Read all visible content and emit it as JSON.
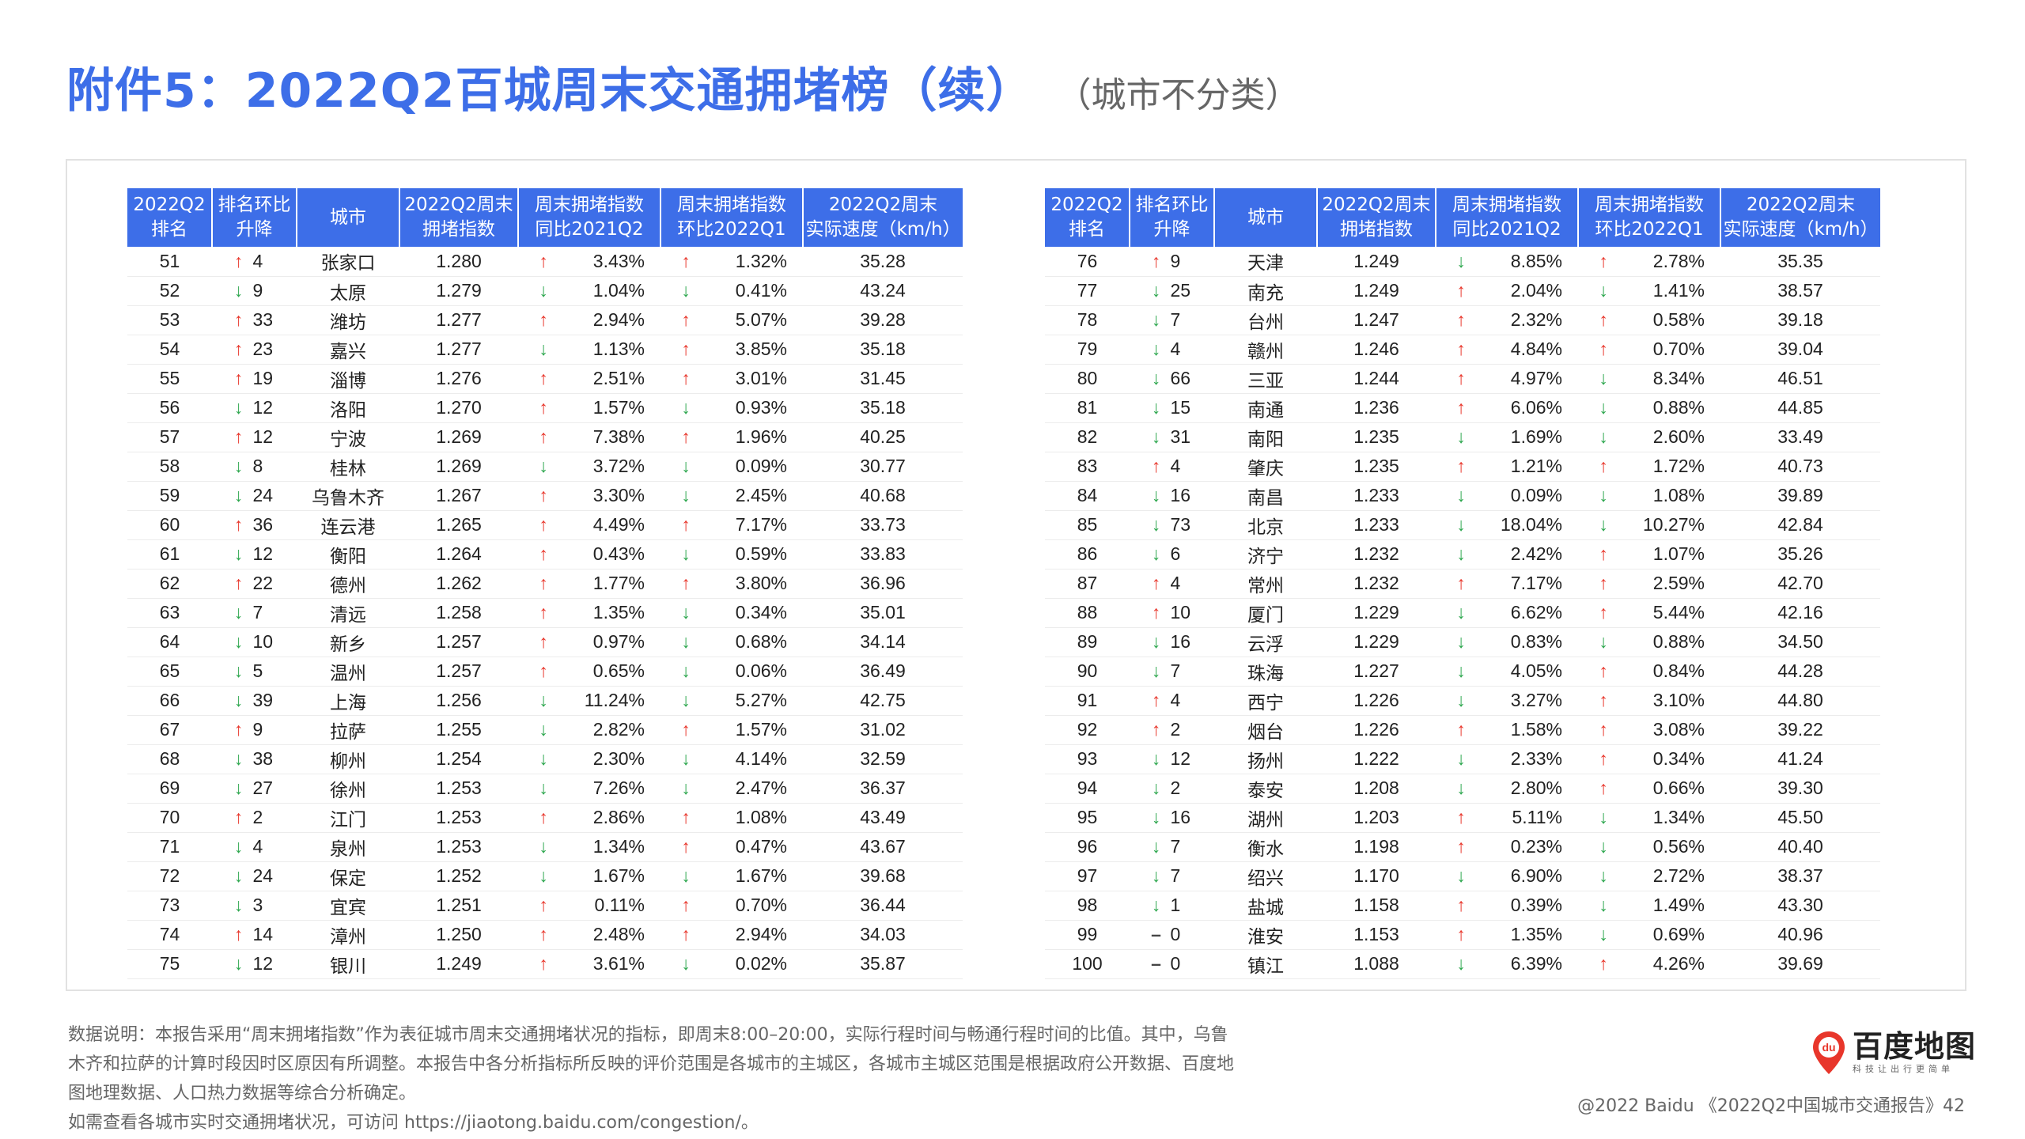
{
  "title": {
    "main": "附件5：2022Q2百城周末交通拥堵榜（续）",
    "sub": "（城市不分类）"
  },
  "table": {
    "headers": [
      [
        "2022Q2",
        "排名"
      ],
      [
        "排名环比",
        "升降"
      ],
      [
        "城市"
      ],
      [
        "2022Q2周末",
        "拥堵指数"
      ],
      [
        "周末拥堵指数",
        "同比2021Q2"
      ],
      [
        "周末拥堵指数",
        "环比2022Q1"
      ],
      [
        "2022Q2周末",
        "实际速度（km/h）"
      ]
    ],
    "left_rows": [
      {
        "rank": "51",
        "change_dir": "up",
        "change": "4",
        "city": "张家口",
        "index": "1.280",
        "yoy_dir": "up",
        "yoy": "3.43%",
        "qoq_dir": "up",
        "qoq": "1.32%",
        "speed": "35.28"
      },
      {
        "rank": "52",
        "change_dir": "down",
        "change": "9",
        "city": "太原",
        "index": "1.279",
        "yoy_dir": "down",
        "yoy": "1.04%",
        "qoq_dir": "down",
        "qoq": "0.41%",
        "speed": "43.24"
      },
      {
        "rank": "53",
        "change_dir": "up",
        "change": "33",
        "city": "潍坊",
        "index": "1.277",
        "yoy_dir": "up",
        "yoy": "2.94%",
        "qoq_dir": "up",
        "qoq": "5.07%",
        "speed": "39.28"
      },
      {
        "rank": "54",
        "change_dir": "up",
        "change": "23",
        "city": "嘉兴",
        "index": "1.277",
        "yoy_dir": "down",
        "yoy": "1.13%",
        "qoq_dir": "up",
        "qoq": "3.85%",
        "speed": "35.18"
      },
      {
        "rank": "55",
        "change_dir": "up",
        "change": "19",
        "city": "淄博",
        "index": "1.276",
        "yoy_dir": "up",
        "yoy": "2.51%",
        "qoq_dir": "up",
        "qoq": "3.01%",
        "speed": "31.45"
      },
      {
        "rank": "56",
        "change_dir": "down",
        "change": "12",
        "city": "洛阳",
        "index": "1.270",
        "yoy_dir": "up",
        "yoy": "1.57%",
        "qoq_dir": "down",
        "qoq": "0.93%",
        "speed": "35.18"
      },
      {
        "rank": "57",
        "change_dir": "up",
        "change": "12",
        "city": "宁波",
        "index": "1.269",
        "yoy_dir": "up",
        "yoy": "7.38%",
        "qoq_dir": "up",
        "qoq": "1.96%",
        "speed": "40.25"
      },
      {
        "rank": "58",
        "change_dir": "down",
        "change": "8",
        "city": "桂林",
        "index": "1.269",
        "yoy_dir": "down",
        "yoy": "3.72%",
        "qoq_dir": "down",
        "qoq": "0.09%",
        "speed": "30.77"
      },
      {
        "rank": "59",
        "change_dir": "down",
        "change": "24",
        "city": "乌鲁木齐",
        "index": "1.267",
        "yoy_dir": "up",
        "yoy": "3.30%",
        "qoq_dir": "down",
        "qoq": "2.45%",
        "speed": "40.68"
      },
      {
        "rank": "60",
        "change_dir": "up",
        "change": "36",
        "city": "连云港",
        "index": "1.265",
        "yoy_dir": "up",
        "yoy": "4.49%",
        "qoq_dir": "up",
        "qoq": "7.17%",
        "speed": "33.73"
      },
      {
        "rank": "61",
        "change_dir": "down",
        "change": "12",
        "city": "衡阳",
        "index": "1.264",
        "yoy_dir": "up",
        "yoy": "0.43%",
        "qoq_dir": "down",
        "qoq": "0.59%",
        "speed": "33.83"
      },
      {
        "rank": "62",
        "change_dir": "up",
        "change": "22",
        "city": "德州",
        "index": "1.262",
        "yoy_dir": "up",
        "yoy": "1.77%",
        "qoq_dir": "up",
        "qoq": "3.80%",
        "speed": "36.96"
      },
      {
        "rank": "63",
        "change_dir": "down",
        "change": "7",
        "city": "清远",
        "index": "1.258",
        "yoy_dir": "up",
        "yoy": "1.35%",
        "qoq_dir": "down",
        "qoq": "0.34%",
        "speed": "35.01"
      },
      {
        "rank": "64",
        "change_dir": "down",
        "change": "10",
        "city": "新乡",
        "index": "1.257",
        "yoy_dir": "up",
        "yoy": "0.97%",
        "qoq_dir": "down",
        "qoq": "0.68%",
        "speed": "34.14"
      },
      {
        "rank": "65",
        "change_dir": "down",
        "change": "5",
        "city": "温州",
        "index": "1.257",
        "yoy_dir": "up",
        "yoy": "0.65%",
        "qoq_dir": "down",
        "qoq": "0.06%",
        "speed": "36.49"
      },
      {
        "rank": "66",
        "change_dir": "down",
        "change": "39",
        "city": "上海",
        "index": "1.256",
        "yoy_dir": "down",
        "yoy": "11.24%",
        "qoq_dir": "down",
        "qoq": "5.27%",
        "speed": "42.75"
      },
      {
        "rank": "67",
        "change_dir": "up",
        "change": "9",
        "city": "拉萨",
        "index": "1.255",
        "yoy_dir": "down",
        "yoy": "2.82%",
        "qoq_dir": "up",
        "qoq": "1.57%",
        "speed": "31.02"
      },
      {
        "rank": "68",
        "change_dir": "down",
        "change": "38",
        "city": "柳州",
        "index": "1.254",
        "yoy_dir": "down",
        "yoy": "2.30%",
        "qoq_dir": "down",
        "qoq": "4.14%",
        "speed": "32.59"
      },
      {
        "rank": "69",
        "change_dir": "down",
        "change": "27",
        "city": "徐州",
        "index": "1.253",
        "yoy_dir": "down",
        "yoy": "7.26%",
        "qoq_dir": "down",
        "qoq": "2.47%",
        "speed": "36.37"
      },
      {
        "rank": "70",
        "change_dir": "up",
        "change": "2",
        "city": "江门",
        "index": "1.253",
        "yoy_dir": "up",
        "yoy": "2.86%",
        "qoq_dir": "up",
        "qoq": "1.08%",
        "speed": "43.49"
      },
      {
        "rank": "71",
        "change_dir": "down",
        "change": "4",
        "city": "泉州",
        "index": "1.253",
        "yoy_dir": "down",
        "yoy": "1.34%",
        "qoq_dir": "up",
        "qoq": "0.47%",
        "speed": "43.67"
      },
      {
        "rank": "72",
        "change_dir": "down",
        "change": "24",
        "city": "保定",
        "index": "1.252",
        "yoy_dir": "down",
        "yoy": "1.67%",
        "qoq_dir": "down",
        "qoq": "1.67%",
        "speed": "39.68"
      },
      {
        "rank": "73",
        "change_dir": "down",
        "change": "3",
        "city": "宜宾",
        "index": "1.251",
        "yoy_dir": "up",
        "yoy": "0.11%",
        "qoq_dir": "up",
        "qoq": "0.70%",
        "speed": "36.44"
      },
      {
        "rank": "74",
        "change_dir": "up",
        "change": "14",
        "city": "漳州",
        "index": "1.250",
        "yoy_dir": "up",
        "yoy": "2.48%",
        "qoq_dir": "up",
        "qoq": "2.94%",
        "speed": "34.03"
      },
      {
        "rank": "75",
        "change_dir": "down",
        "change": "12",
        "city": "银川",
        "index": "1.249",
        "yoy_dir": "up",
        "yoy": "3.61%",
        "qoq_dir": "down",
        "qoq": "0.02%",
        "speed": "35.87"
      }
    ],
    "right_rows": [
      {
        "rank": "76",
        "change_dir": "up",
        "change": "9",
        "city": "天津",
        "index": "1.249",
        "yoy_dir": "down",
        "yoy": "8.85%",
        "qoq_dir": "up",
        "qoq": "2.78%",
        "speed": "35.35"
      },
      {
        "rank": "77",
        "change_dir": "down",
        "change": "25",
        "city": "南充",
        "index": "1.249",
        "yoy_dir": "up",
        "yoy": "2.04%",
        "qoq_dir": "down",
        "qoq": "1.41%",
        "speed": "38.57"
      },
      {
        "rank": "78",
        "change_dir": "down",
        "change": "7",
        "city": "台州",
        "index": "1.247",
        "yoy_dir": "up",
        "yoy": "2.32%",
        "qoq_dir": "up",
        "qoq": "0.58%",
        "speed": "39.18"
      },
      {
        "rank": "79",
        "change_dir": "down",
        "change": "4",
        "city": "赣州",
        "index": "1.246",
        "yoy_dir": "up",
        "yoy": "4.84%",
        "qoq_dir": "up",
        "qoq": "0.70%",
        "speed": "39.04"
      },
      {
        "rank": "80",
        "change_dir": "down",
        "change": "66",
        "city": "三亚",
        "index": "1.244",
        "yoy_dir": "up",
        "yoy": "4.97%",
        "qoq_dir": "down",
        "qoq": "8.34%",
        "speed": "46.51"
      },
      {
        "rank": "81",
        "change_dir": "down",
        "change": "15",
        "city": "南通",
        "index": "1.236",
        "yoy_dir": "up",
        "yoy": "6.06%",
        "qoq_dir": "down",
        "qoq": "0.88%",
        "speed": "44.85"
      },
      {
        "rank": "82",
        "change_dir": "down",
        "change": "31",
        "city": "南阳",
        "index": "1.235",
        "yoy_dir": "down",
        "yoy": "1.69%",
        "qoq_dir": "down",
        "qoq": "2.60%",
        "speed": "33.49"
      },
      {
        "rank": "83",
        "change_dir": "up",
        "change": "4",
        "city": "肇庆",
        "index": "1.235",
        "yoy_dir": "up",
        "yoy": "1.21%",
        "qoq_dir": "up",
        "qoq": "1.72%",
        "speed": "40.73"
      },
      {
        "rank": "84",
        "change_dir": "down",
        "change": "16",
        "city": "南昌",
        "index": "1.233",
        "yoy_dir": "down",
        "yoy": "0.09%",
        "qoq_dir": "down",
        "qoq": "1.08%",
        "speed": "39.89"
      },
      {
        "rank": "85",
        "change_dir": "down",
        "change": "73",
        "city": "北京",
        "index": "1.233",
        "yoy_dir": "down",
        "yoy": "18.04%",
        "qoq_dir": "down",
        "qoq": "10.27%",
        "speed": "42.84"
      },
      {
        "rank": "86",
        "change_dir": "down",
        "change": "6",
        "city": "济宁",
        "index": "1.232",
        "yoy_dir": "down",
        "yoy": "2.42%",
        "qoq_dir": "up",
        "qoq": "1.07%",
        "speed": "35.26"
      },
      {
        "rank": "87",
        "change_dir": "up",
        "change": "4",
        "city": "常州",
        "index": "1.232",
        "yoy_dir": "up",
        "yoy": "7.17%",
        "qoq_dir": "up",
        "qoq": "2.59%",
        "speed": "42.70"
      },
      {
        "rank": "88",
        "change_dir": "up",
        "change": "10",
        "city": "厦门",
        "index": "1.229",
        "yoy_dir": "down",
        "yoy": "6.62%",
        "qoq_dir": "up",
        "qoq": "5.44%",
        "speed": "42.16"
      },
      {
        "rank": "89",
        "change_dir": "down",
        "change": "16",
        "city": "云浮",
        "index": "1.229",
        "yoy_dir": "down",
        "yoy": "0.83%",
        "qoq_dir": "down",
        "qoq": "0.88%",
        "speed": "34.50"
      },
      {
        "rank": "90",
        "change_dir": "down",
        "change": "7",
        "city": "珠海",
        "index": "1.227",
        "yoy_dir": "down",
        "yoy": "4.05%",
        "qoq_dir": "up",
        "qoq": "0.84%",
        "speed": "44.28"
      },
      {
        "rank": "91",
        "change_dir": "up",
        "change": "4",
        "city": "西宁",
        "index": "1.226",
        "yoy_dir": "down",
        "yoy": "3.27%",
        "qoq_dir": "up",
        "qoq": "3.10%",
        "speed": "44.80"
      },
      {
        "rank": "92",
        "change_dir": "up",
        "change": "2",
        "city": "烟台",
        "index": "1.226",
        "yoy_dir": "up",
        "yoy": "1.58%",
        "qoq_dir": "up",
        "qoq": "3.08%",
        "speed": "39.22"
      },
      {
        "rank": "93",
        "change_dir": "down",
        "change": "12",
        "city": "扬州",
        "index": "1.222",
        "yoy_dir": "down",
        "yoy": "2.33%",
        "qoq_dir": "up",
        "qoq": "0.34%",
        "speed": "41.24"
      },
      {
        "rank": "94",
        "change_dir": "down",
        "change": "2",
        "city": "泰安",
        "index": "1.208",
        "yoy_dir": "down",
        "yoy": "2.80%",
        "qoq_dir": "up",
        "qoq": "0.66%",
        "speed": "39.30"
      },
      {
        "rank": "95",
        "change_dir": "down",
        "change": "16",
        "city": "湖州",
        "index": "1.203",
        "yoy_dir": "up",
        "yoy": "5.11%",
        "qoq_dir": "down",
        "qoq": "1.34%",
        "speed": "45.50"
      },
      {
        "rank": "96",
        "change_dir": "down",
        "change": "7",
        "city": "衡水",
        "index": "1.198",
        "yoy_dir": "up",
        "yoy": "0.23%",
        "qoq_dir": "down",
        "qoq": "0.56%",
        "speed": "40.40"
      },
      {
        "rank": "97",
        "change_dir": "down",
        "change": "7",
        "city": "绍兴",
        "index": "1.170",
        "yoy_dir": "down",
        "yoy": "6.90%",
        "qoq_dir": "down",
        "qoq": "2.72%",
        "speed": "38.37"
      },
      {
        "rank": "98",
        "change_dir": "down",
        "change": "1",
        "city": "盐城",
        "index": "1.158",
        "yoy_dir": "up",
        "yoy": "0.39%",
        "qoq_dir": "down",
        "qoq": "1.49%",
        "speed": "43.30"
      },
      {
        "rank": "99",
        "change_dir": "flat",
        "change": "0",
        "city": "淮安",
        "index": "1.153",
        "yoy_dir": "up",
        "yoy": "1.35%",
        "qoq_dir": "down",
        "qoq": "0.69%",
        "speed": "40.96"
      },
      {
        "rank": "100",
        "change_dir": "flat",
        "change": "0",
        "city": "镇江",
        "index": "1.088",
        "yoy_dir": "down",
        "yoy": "6.39%",
        "qoq_dir": "up",
        "qoq": "4.26%",
        "speed": "39.69"
      }
    ]
  },
  "arrows": {
    "up": "↑",
    "down": "↓",
    "flat": "–"
  },
  "colors": {
    "accent": "#3d6ee8",
    "up": "#e8362b",
    "down": "#2ea74f"
  },
  "footnote": {
    "line1": "数据说明：本报告采用“周末拥堵指数”作为表征城市周末交通拥堵状况的指标，即周末8:00–20:00，实际行程时间与畅通行程时间的比值。其中，乌鲁",
    "line2": "木齐和拉萨的计算时段因时区原因有所调整。本报告中各分析指标所反映的评价范围是各城市的主城区，各城市主城区范围是根据政府公开数据、百度地",
    "line3": "图地理数据、人口热力数据等综合分析确定。",
    "line4": "如需查看各城市实时交通拥堵状况，可访问 https://jiaotong.baidu.com/congestion/。"
  },
  "logo": {
    "icon": "baidu-map-pin-icon",
    "pin_text": "du",
    "name": "百度地图",
    "slogan": "科技让出行更简单"
  },
  "copyright": "@2022 Baidu 《2022Q2中国城市交通报告》42"
}
